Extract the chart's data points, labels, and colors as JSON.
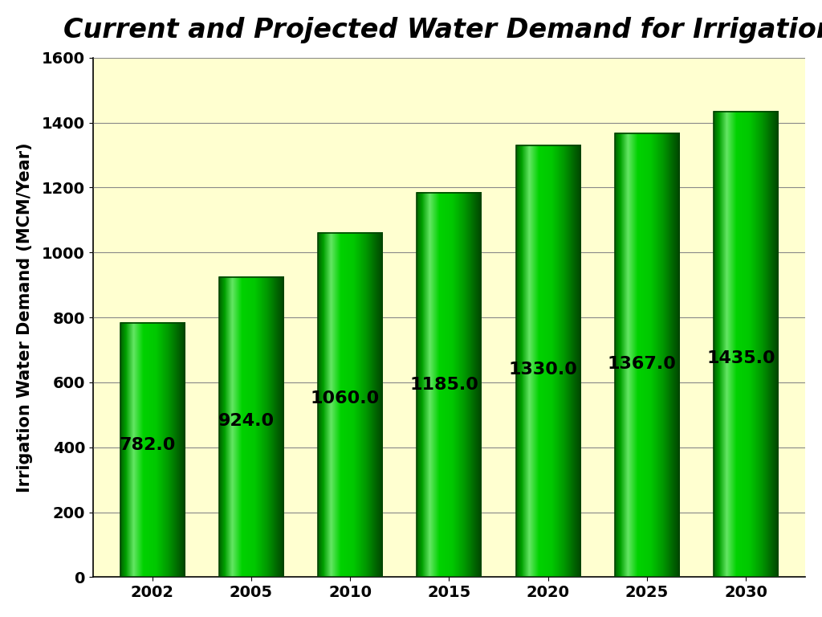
{
  "title": "Current and Projected Water Demand for Irrigation",
  "xlabel": "",
  "ylabel": "Irrigation Water Demand (MCM/Year)",
  "categories": [
    "2002",
    "2005",
    "2010",
    "2015",
    "2020",
    "2025",
    "2030"
  ],
  "values": [
    782.0,
    924.0,
    1060.0,
    1185.0,
    1330.0,
    1367.0,
    1435.0
  ],
  "bar_color_main": "#00DD00",
  "bar_color_light": "#AAFFAA",
  "bar_color_dark": "#005500",
  "bar_color_mid": "#00BB00",
  "background_color": "#FFFFFF",
  "plot_bg_color": "#FFFFD0",
  "ylim": [
    0,
    1600
  ],
  "yticks": [
    0,
    200,
    400,
    600,
    800,
    1000,
    1200,
    1400,
    1600
  ],
  "title_fontsize": 24,
  "ylabel_fontsize": 15,
  "tick_fontsize": 14,
  "label_fontsize": 16,
  "bar_width": 0.65,
  "gradient_steps": 100
}
